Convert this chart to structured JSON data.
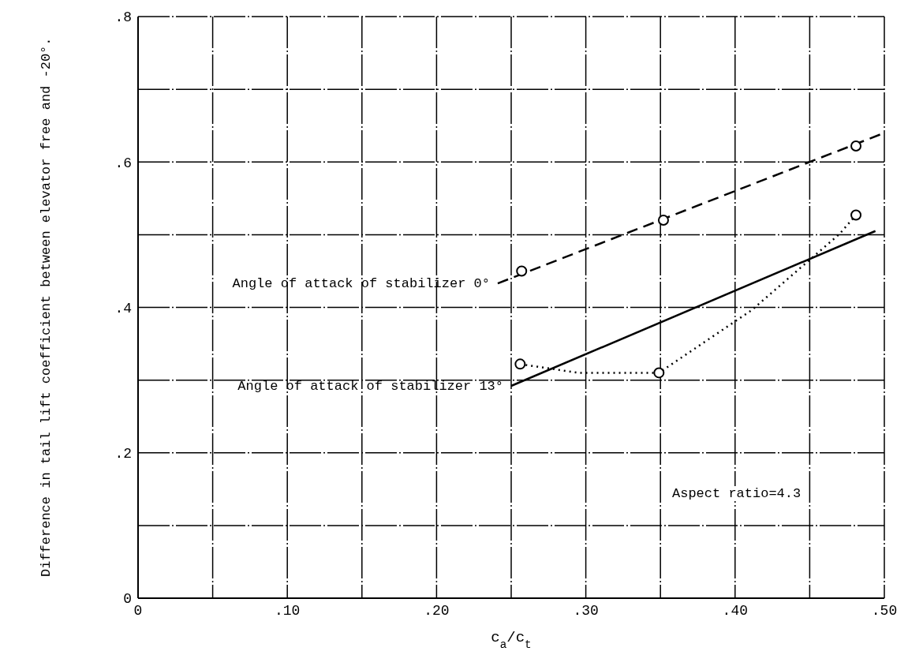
{
  "chart_data": {
    "type": "line",
    "xlabel": "c$_{a}$/c$_{t}$",
    "ylabel": "Difference in tail lift coefficient between elevator free and -20°.",
    "xlim": [
      0,
      0.5
    ],
    "xticks": [
      {
        "value": 0,
        "label": "0"
      },
      {
        "value": 0.05,
        "label": null
      },
      {
        "value": 0.1,
        "label": ".10"
      },
      {
        "value": 0.15,
        "label": null
      },
      {
        "value": 0.2,
        "label": ".20"
      },
      {
        "value": 0.25,
        "label": null
      },
      {
        "value": 0.3,
        "label": ".30"
      },
      {
        "value": 0.35,
        "label": null
      },
      {
        "value": 0.4,
        "label": ".40"
      },
      {
        "value": 0.45,
        "label": null
      },
      {
        "value": 0.5,
        "label": ".50"
      }
    ],
    "ylim": [
      0,
      0.8
    ],
    "yticks": [
      {
        "value": 0,
        "label": "0"
      },
      {
        "value": 0.1,
        "label": null
      },
      {
        "value": 0.2,
        "label": ".2"
      },
      {
        "value": 0.3,
        "label": null
      },
      {
        "value": 0.4,
        "label": ".4"
      },
      {
        "value": 0.5,
        "label": null
      },
      {
        "value": 0.6,
        "label": ".6"
      },
      {
        "value": 0.7,
        "label": null
      },
      {
        "value": 0.8,
        "label": ".8"
      }
    ],
    "grid": true,
    "series": [
      {
        "name": "Angle of attack of stabilizer 0°",
        "color": "#000000",
        "line_style": "dashed",
        "marker": "none",
        "x": [
          0.241,
          0.5
        ],
        "values": [
          0.433,
          0.64
        ]
      },
      {
        "type": "scatter",
        "color": "#000000",
        "marker": "circle",
        "x": [
          0.257,
          0.352,
          0.481
        ],
        "values": [
          0.45,
          0.52,
          0.622
        ]
      },
      {
        "name": "Angle of attack of stabilizer 13°",
        "color": "#000000",
        "line_style": "solid",
        "marker": "none",
        "x": [
          0.25,
          0.494
        ],
        "values": [
          0.292,
          0.505
        ]
      },
      {
        "color": "#000000",
        "line_style": "dotted",
        "marker": "none",
        "x": [
          0.256,
          0.295,
          0.349,
          0.411,
          0.47,
          0.481
        ],
        "values": [
          0.322,
          0.31,
          0.31,
          0.396,
          0.501,
          0.527
        ]
      },
      {
        "type": "scatter",
        "color": "#000000",
        "marker": "circle",
        "x": [
          0.256,
          0.349,
          0.481
        ],
        "values": [
          0.322,
          0.31,
          0.527
        ]
      }
    ],
    "annotations": [
      "Aspect ratio=4.3"
    ]
  }
}
